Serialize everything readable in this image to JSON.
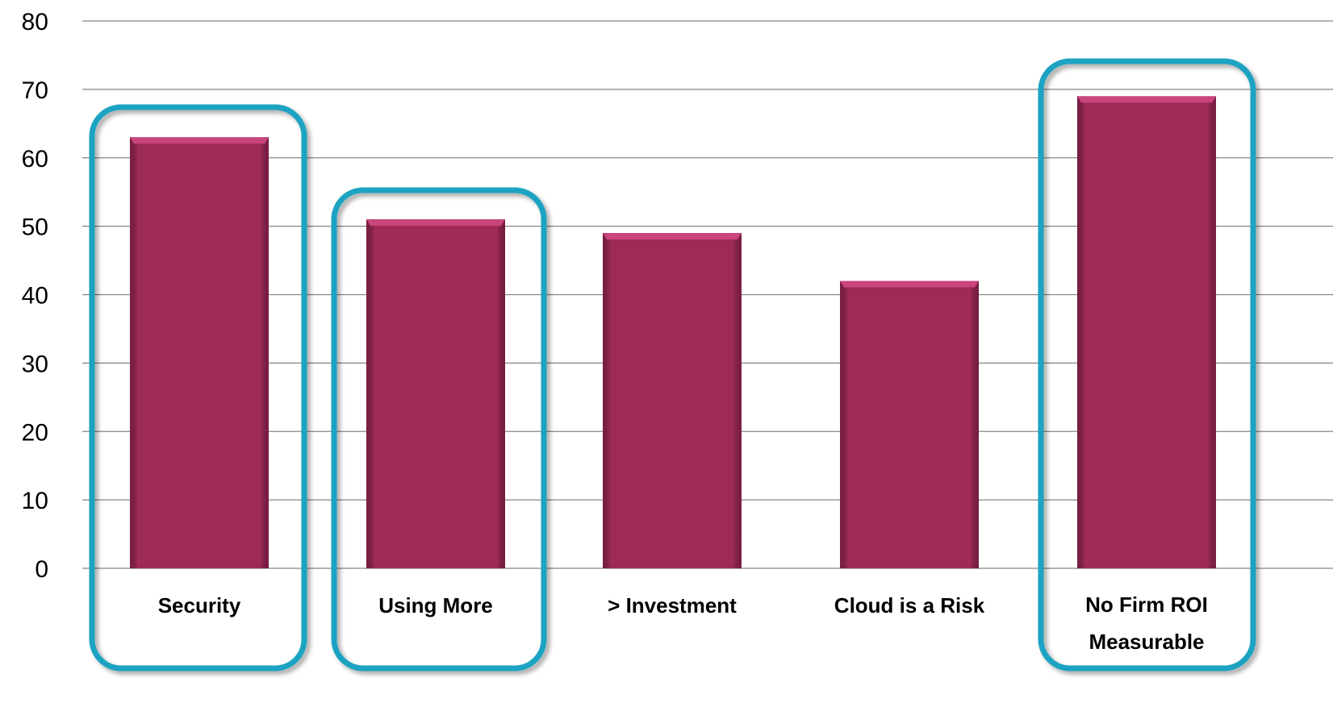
{
  "colors": {
    "bar": "#9e2a58",
    "bar_top": "#c9457b",
    "highlight_outline": "#1ba3c2",
    "gridline": "#868686"
  },
  "chart_data": {
    "type": "bar",
    "title": "",
    "xlabel": "",
    "ylabel": "",
    "categories": [
      "Security",
      "Using More",
      "> Investment",
      "Cloud is a Risk",
      "No Firm ROI Measurable"
    ],
    "category_lines": [
      [
        "Security"
      ],
      [
        "Using More"
      ],
      [
        "> Investment"
      ],
      [
        "Cloud is a Risk"
      ],
      [
        "No Firm ROI",
        "Measurable"
      ]
    ],
    "values": [
      63,
      51,
      49,
      42,
      69
    ],
    "highlighted": [
      "Security",
      "Using More",
      "No Firm ROI Measurable"
    ],
    "ylim": [
      0,
      80
    ],
    "yticks": [
      "0",
      "10",
      "20",
      "30",
      "40",
      "50",
      "60",
      "70",
      "80"
    ],
    "grid": true,
    "legend": "none"
  }
}
